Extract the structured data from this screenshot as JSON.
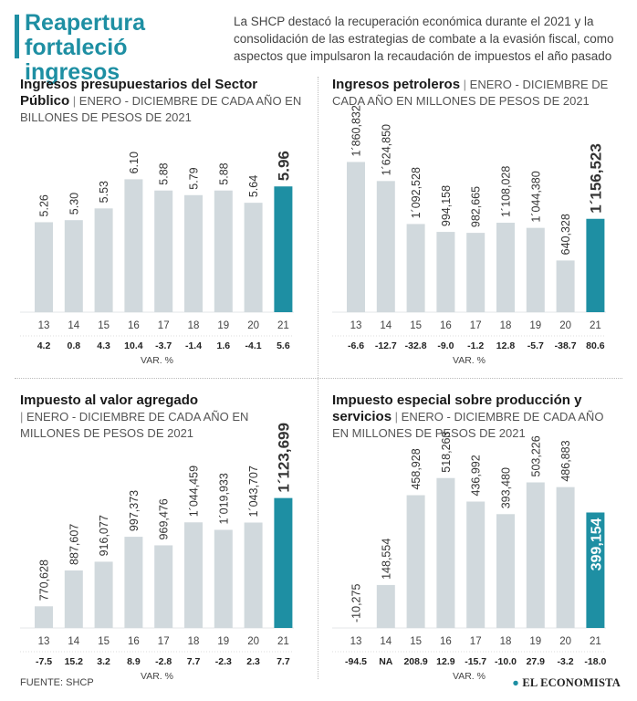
{
  "header": {
    "title": "Reapertura fortaleció ingresos",
    "subtitle": "La SHCP destacó la recuperación económica durante el 2021 y la consolidación de las estrategias de combate a la evasión fiscal, como aspectos que impulsaron la recaudación de impuestos el año pasado"
  },
  "footer": {
    "source": "FUENTE: SHCP",
    "brand": "EL ECONOMISTA"
  },
  "colors": {
    "bar": "#d1d9dd",
    "highlight": "#1e8fa3",
    "accent": "#1e8fa3"
  },
  "chart_data": [
    {
      "id": "ingresos",
      "type": "bar",
      "title": "Ingresos presupuestarios del Sector Público",
      "period": "ENERO - DICIEMBRE DE CADA AÑO EN BILLONES DE PESOS DE 2021",
      "categories": [
        "13",
        "14",
        "15",
        "16",
        "17",
        "18",
        "19",
        "20",
        "21"
      ],
      "values": [
        5.26,
        5.3,
        5.53,
        6.1,
        5.88,
        5.79,
        5.88,
        5.64,
        5.96
      ],
      "labels": [
        "5.26",
        "5.30",
        "5.53",
        "6.10",
        "5.88",
        "5.79",
        "5.88",
        "5.64",
        "5.96"
      ],
      "var": [
        "4.2",
        "0.8",
        "4.3",
        "10.4",
        "-3.7",
        "-1.4",
        "1.6",
        "-4.1",
        "5.6"
      ],
      "var_label": "VAR. %",
      "highlight_index": 8,
      "ylim": [
        3.5,
        6.5
      ]
    },
    {
      "id": "petroleros",
      "type": "bar",
      "title": "Ingresos petroleros",
      "period": "ENERO - DICIEMBRE DE CADA AÑO EN MILLONES DE PESOS DE 2021",
      "categories": [
        "13",
        "14",
        "15",
        "16",
        "17",
        "18",
        "19",
        "20",
        "21"
      ],
      "values": [
        1860832,
        1624850,
        1092528,
        994158,
        982665,
        1108028,
        1044380,
        640328,
        1156523
      ],
      "labels": [
        "1´860,832",
        "1´624,850",
        "1´092,528",
        "994,158",
        "982,665",
        "1´108,028",
        "1´044,380",
        "640,328",
        "1´156,523"
      ],
      "var": [
        "-6.6",
        "-12.7",
        "-32.8",
        "-9.0",
        "-1.2",
        "12.8",
        "-5.7",
        "-38.7",
        "80.6"
      ],
      "var_label": "VAR. %",
      "highlight_index": 8,
      "ylim": [
        0,
        1900000
      ]
    },
    {
      "id": "iva",
      "type": "bar",
      "title": "Impuesto al valor agregado",
      "period": "ENERO - DICIEMBRE DE CADA AÑO EN MILLONES DE PESOS DE 2021",
      "categories": [
        "13",
        "14",
        "15",
        "16",
        "17",
        "18",
        "19",
        "20",
        "21"
      ],
      "values": [
        770628,
        887607,
        916077,
        997373,
        969476,
        1044459,
        1019933,
        1043707,
        1123699
      ],
      "labels": [
        "770,628",
        "887,607",
        "916,077",
        "997,373",
        "969,476",
        "1´044,459",
        "1´019,933",
        "1´043,707",
        "1´123,699"
      ],
      "var": [
        "-7.5",
        "15.2",
        "3.2",
        "8.9",
        "-2.8",
        "7.7",
        "-2.3",
        "2.3",
        "7.7"
      ],
      "var_label": "VAR. %",
      "highlight_index": 8,
      "ylim": [
        700000,
        1200000
      ]
    },
    {
      "id": "ieps",
      "type": "bar",
      "title": "Impuesto especial sobre producción y servicios",
      "period": "ENERO - DICIEMBRE DE CADA AÑO EN MILLONES DE PESOS DE 2021",
      "categories": [
        "13",
        "14",
        "15",
        "16",
        "17",
        "18",
        "19",
        "20",
        "21"
      ],
      "values": [
        -10275,
        148554,
        458928,
        518263,
        436992,
        393480,
        503226,
        486883,
        399154
      ],
      "labels": [
        "-10,275",
        "148,554",
        "458,928",
        "518,263",
        "436,992",
        "393,480",
        "503,226",
        "486,883",
        "399,154"
      ],
      "var": [
        "-94.5",
        "NA",
        "208.9",
        "12.9",
        "-15.7",
        "-10.0",
        "27.9",
        "-3.2",
        "-18.0"
      ],
      "var_label": "VAR. %",
      "highlight_index": 8,
      "ylim": [
        0,
        530000
      ]
    }
  ]
}
